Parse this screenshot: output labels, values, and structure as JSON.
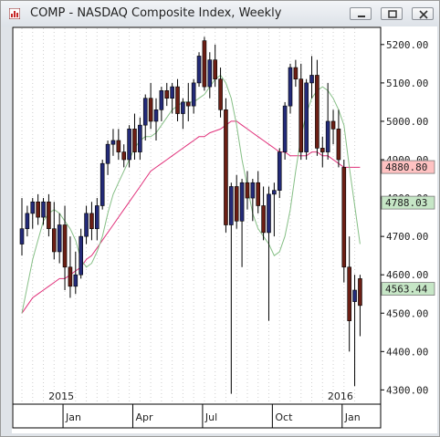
{
  "window": {
    "title": "COMP - NASDAQ Composite Index, Weekly",
    "controls": {
      "minimize_icon": "minimize-icon",
      "restore_icon": "restore-icon",
      "close_icon": "close-icon"
    }
  },
  "chart_data": {
    "type": "candlestick",
    "title": "COMP - NASDAQ Composite Index, Weekly",
    "y_ticks": [
      "5200.00",
      "5100.00",
      "5000.00",
      "4900.00",
      "4800.00",
      "4700.00",
      "4600.00",
      "4500.00",
      "4400.00",
      "4300.00"
    ],
    "y_tick_values": [
      5200,
      5100,
      5000,
      4900,
      4800,
      4700,
      4600,
      4500,
      4400,
      4300
    ],
    "ylim": [
      4270,
      5240
    ],
    "year_labels": [
      {
        "label": "2015",
        "week": 7
      },
      {
        "label": "2016",
        "week": 59
      }
    ],
    "month_labels": [
      {
        "label": "Jan",
        "week": 8
      },
      {
        "label": "Apr",
        "week": 21
      },
      {
        "label": "Jul",
        "week": 34
      },
      {
        "label": "Oct",
        "week": 47
      },
      {
        "label": "Jan",
        "week": 60
      }
    ],
    "price_markers": [
      {
        "value": 4880.8,
        "label": "4880.80",
        "color": "#ffc2c2"
      },
      {
        "value": 4788.03,
        "label": "4788.03",
        "color": "#c6e6c6"
      },
      {
        "value": 4563.44,
        "label": "4563.44",
        "color": "#c6e6c6"
      }
    ],
    "colors": {
      "up": "#232a78",
      "down": "#6b1e14",
      "ma_short": "#86bf86",
      "ma_long": "#e0307a"
    },
    "candles": [
      {
        "o": 4680,
        "h": 4800,
        "l": 4650,
        "c": 4720
      },
      {
        "o": 4720,
        "h": 4780,
        "l": 4700,
        "c": 4760
      },
      {
        "o": 4760,
        "h": 4800,
        "l": 4720,
        "c": 4790
      },
      {
        "o": 4790,
        "h": 4810,
        "l": 4730,
        "c": 4750
      },
      {
        "o": 4750,
        "h": 4800,
        "l": 4730,
        "c": 4790
      },
      {
        "o": 4790,
        "h": 4810,
        "l": 4700,
        "c": 4720
      },
      {
        "o": 4720,
        "h": 4790,
        "l": 4640,
        "c": 4660
      },
      {
        "o": 4660,
        "h": 4760,
        "l": 4630,
        "c": 4730
      },
      {
        "o": 4730,
        "h": 4780,
        "l": 4560,
        "c": 4620
      },
      {
        "o": 4620,
        "h": 4700,
        "l": 4540,
        "c": 4570
      },
      {
        "o": 4570,
        "h": 4660,
        "l": 4550,
        "c": 4600
      },
      {
        "o": 4600,
        "h": 4720,
        "l": 4590,
        "c": 4700
      },
      {
        "o": 4700,
        "h": 4780,
        "l": 4680,
        "c": 4760
      },
      {
        "o": 4760,
        "h": 4790,
        "l": 4690,
        "c": 4720
      },
      {
        "o": 4720,
        "h": 4800,
        "l": 4690,
        "c": 4780
      },
      {
        "o": 4780,
        "h": 4900,
        "l": 4770,
        "c": 4890
      },
      {
        "o": 4890,
        "h": 4950,
        "l": 4860,
        "c": 4940
      },
      {
        "o": 4940,
        "h": 4980,
        "l": 4910,
        "c": 4950
      },
      {
        "o": 4950,
        "h": 4980,
        "l": 4900,
        "c": 4920
      },
      {
        "o": 4920,
        "h": 4940,
        "l": 4880,
        "c": 4900
      },
      {
        "o": 4900,
        "h": 4990,
        "l": 4880,
        "c": 4980
      },
      {
        "o": 4980,
        "h": 5020,
        "l": 4900,
        "c": 4920
      },
      {
        "o": 4920,
        "h": 5010,
        "l": 4900,
        "c": 4990
      },
      {
        "o": 4990,
        "h": 5070,
        "l": 4950,
        "c": 5060
      },
      {
        "o": 5060,
        "h": 5100,
        "l": 4980,
        "c": 5000
      },
      {
        "o": 5000,
        "h": 5060,
        "l": 4950,
        "c": 5030
      },
      {
        "o": 5030,
        "h": 5090,
        "l": 5000,
        "c": 5080
      },
      {
        "o": 5080,
        "h": 5100,
        "l": 5040,
        "c": 5060
      },
      {
        "o": 5060,
        "h": 5100,
        "l": 5020,
        "c": 5090
      },
      {
        "o": 5090,
        "h": 5110,
        "l": 5000,
        "c": 5020
      },
      {
        "o": 5020,
        "h": 5060,
        "l": 4980,
        "c": 5050
      },
      {
        "o": 5050,
        "h": 5100,
        "l": 5000,
        "c": 5040
      },
      {
        "o": 5040,
        "h": 5110,
        "l": 5020,
        "c": 5100
      },
      {
        "o": 5100,
        "h": 5180,
        "l": 5090,
        "c": 5170
      },
      {
        "o": 5210,
        "h": 5220,
        "l": 5080,
        "c": 5090
      },
      {
        "o": 5090,
        "h": 5180,
        "l": 5060,
        "c": 5160
      },
      {
        "o": 5160,
        "h": 5200,
        "l": 5090,
        "c": 5110
      },
      {
        "o": 5110,
        "h": 5140,
        "l": 5010,
        "c": 5030
      },
      {
        "o": 5030,
        "h": 5060,
        "l": 4710,
        "c": 4730
      },
      {
        "o": 4730,
        "h": 4840,
        "l": 4290,
        "c": 4830
      },
      {
        "o": 4830,
        "h": 4860,
        "l": 4720,
        "c": 4740
      },
      {
        "o": 4740,
        "h": 4850,
        "l": 4620,
        "c": 4840
      },
      {
        "o": 4840,
        "h": 4870,
        "l": 4770,
        "c": 4800
      },
      {
        "o": 4800,
        "h": 4850,
        "l": 4740,
        "c": 4840
      },
      {
        "o": 4840,
        "h": 4870,
        "l": 4760,
        "c": 4780
      },
      {
        "o": 4780,
        "h": 4830,
        "l": 4690,
        "c": 4710
      },
      {
        "o": 4710,
        "h": 4830,
        "l": 4480,
        "c": 4810
      },
      {
        "o": 4810,
        "h": 4840,
        "l": 4700,
        "c": 4820
      },
      {
        "o": 4820,
        "h": 4930,
        "l": 4800,
        "c": 4920
      },
      {
        "o": 4920,
        "h": 5050,
        "l": 4900,
        "c": 5040
      },
      {
        "o": 5040,
        "h": 5150,
        "l": 5020,
        "c": 5140
      },
      {
        "o": 5140,
        "h": 5160,
        "l": 5090,
        "c": 5110
      },
      {
        "o": 5110,
        "h": 5150,
        "l": 4900,
        "c": 4920
      },
      {
        "o": 4920,
        "h": 5110,
        "l": 4900,
        "c": 5100
      },
      {
        "o": 5100,
        "h": 5170,
        "l": 5060,
        "c": 5120
      },
      {
        "o": 5120,
        "h": 5160,
        "l": 4910,
        "c": 4930
      },
      {
        "o": 4930,
        "h": 4960,
        "l": 4880,
        "c": 4920
      },
      {
        "o": 4920,
        "h": 5100,
        "l": 4900,
        "c": 5000
      },
      {
        "o": 5000,
        "h": 5030,
        "l": 4940,
        "c": 4980
      },
      {
        "o": 4980,
        "h": 5030,
        "l": 4880,
        "c": 4900
      },
      {
        "o": 4880,
        "h": 4900,
        "l": 4580,
        "c": 4620
      },
      {
        "o": 4620,
        "h": 4700,
        "l": 4400,
        "c": 4480
      },
      {
        "o": 4530,
        "h": 4600,
        "l": 4310,
        "c": 4560
      },
      {
        "o": 4590,
        "h": 4600,
        "l": 4440,
        "c": 4520
      }
    ],
    "ma_short": [
      4500,
      4570,
      4640,
      4690,
      4740,
      4760,
      4770,
      4760,
      4740,
      4720,
      4690,
      4640,
      4620,
      4630,
      4660,
      4700,
      4760,
      4810,
      4840,
      4870,
      4900,
      4930,
      4950,
      4960,
      4960,
      4970,
      4990,
      5010,
      5030,
      5040,
      5050,
      5050,
      5050,
      5060,
      5070,
      5090,
      5110,
      5120,
      5100,
      5060,
      4990,
      4900,
      4830,
      4760,
      4720,
      4700,
      4680,
      4650,
      4660,
      4700,
      4770,
      4870,
      4960,
      5020,
      5060,
      5080,
      5090,
      5080,
      5060,
      5030,
      4990,
      4880,
      4780,
      4680
    ],
    "ma_long": [
      4500,
      4520,
      4540,
      4550,
      4560,
      4570,
      4580,
      4590,
      4590,
      4600,
      4610,
      4620,
      4640,
      4650,
      4670,
      4690,
      4710,
      4730,
      4750,
      4770,
      4790,
      4810,
      4830,
      4850,
      4870,
      4880,
      4890,
      4900,
      4910,
      4920,
      4930,
      4940,
      4950,
      4960,
      4960,
      4970,
      4975,
      4980,
      4990,
      5000,
      5000,
      4990,
      4980,
      4970,
      4960,
      4950,
      4940,
      4930,
      4920,
      4920,
      4910,
      4910,
      4910,
      4910,
      4920,
      4920,
      4910,
      4910,
      4900,
      4890,
      4880,
      4880,
      4880,
      4880
    ]
  }
}
